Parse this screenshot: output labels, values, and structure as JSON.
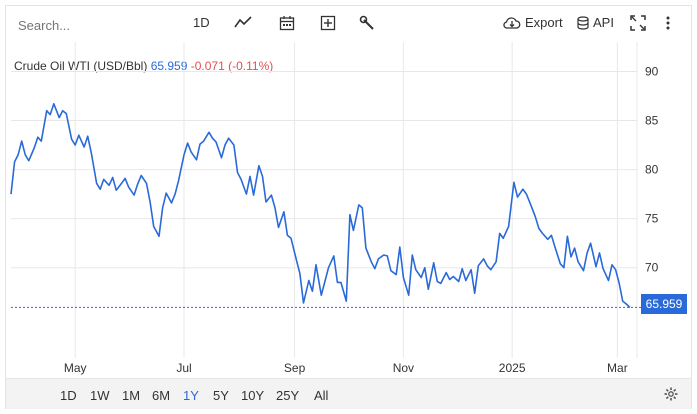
{
  "toolbar": {
    "search_placeholder": "Search...",
    "interval_label": "1D",
    "export_label": "Export",
    "api_label": "API",
    "icons": [
      "line-chart-icon",
      "calendar-icon",
      "plus-box-icon",
      "wrench-icon",
      "cloud-download-icon",
      "database-icon",
      "fullscreen-icon",
      "more-vertical-icon"
    ]
  },
  "header": {
    "name": "Crude Oil WTI (USD/Bbl)",
    "price": "65.959",
    "change": "-0.071 (-0.11%)"
  },
  "price_tag": "65.959",
  "colors": {
    "accent": "#2a6ad8",
    "negative": "#e05252",
    "grid": "#e8e8e8"
  },
  "ranges": {
    "items": [
      "1D",
      "1W",
      "1M",
      "6M",
      "1Y",
      "5Y",
      "10Y",
      "25Y",
      "All"
    ],
    "active": "1Y"
  },
  "chart_data": {
    "type": "line",
    "title": "Crude Oil WTI (USD/Bbl)",
    "xlabel": "",
    "ylabel": "",
    "ylim": [
      60.8,
      93.0
    ],
    "yticks": [
      90,
      85,
      80,
      75,
      70
    ],
    "xlim": [
      "2024-03-26",
      "2025-03-12"
    ],
    "xticks": [
      {
        "label": "May",
        "date": "2024-05-01"
      },
      {
        "label": "Jul",
        "date": "2024-07-01"
      },
      {
        "label": "Sep",
        "date": "2024-09-01"
      },
      {
        "label": "Nov",
        "date": "2024-11-01"
      },
      {
        "label": "2025",
        "date": "2025-01-01"
      },
      {
        "label": "Mar",
        "date": "2025-03-01"
      }
    ],
    "grid": true,
    "last_value": 65.959,
    "series": [
      {
        "name": "Crude Oil WTI (USD/Bbl)",
        "points": [
          [
            "2024-03-26",
            77.5
          ],
          [
            "2024-03-28",
            80.8
          ],
          [
            "2024-03-30",
            81.5
          ],
          [
            "2024-04-01",
            82.9
          ],
          [
            "2024-04-03",
            81.5
          ],
          [
            "2024-04-05",
            80.9
          ],
          [
            "2024-04-08",
            82.2
          ],
          [
            "2024-04-10",
            83.3
          ],
          [
            "2024-04-12",
            82.9
          ],
          [
            "2024-04-15",
            86.0
          ],
          [
            "2024-04-17",
            85.6
          ],
          [
            "2024-04-19",
            86.7
          ],
          [
            "2024-04-22",
            85.3
          ],
          [
            "2024-04-24",
            86.0
          ],
          [
            "2024-04-26",
            85.7
          ],
          [
            "2024-04-29",
            83.1
          ],
          [
            "2024-05-01",
            82.5
          ],
          [
            "2024-05-03",
            83.5
          ],
          [
            "2024-05-06",
            82.3
          ],
          [
            "2024-05-08",
            83.4
          ],
          [
            "2024-05-10",
            81.7
          ],
          [
            "2024-05-13",
            78.6
          ],
          [
            "2024-05-15",
            78.0
          ],
          [
            "2024-05-17",
            79.0
          ],
          [
            "2024-05-20",
            78.4
          ],
          [
            "2024-05-22",
            79.2
          ],
          [
            "2024-05-24",
            77.9
          ],
          [
            "2024-05-27",
            78.6
          ],
          [
            "2024-05-29",
            79.1
          ],
          [
            "2024-05-31",
            78.2
          ],
          [
            "2024-06-03",
            77.4
          ],
          [
            "2024-06-05",
            78.5
          ],
          [
            "2024-06-07",
            79.4
          ],
          [
            "2024-06-10",
            78.6
          ],
          [
            "2024-06-12",
            76.7
          ],
          [
            "2024-06-14",
            74.2
          ],
          [
            "2024-06-17",
            73.2
          ],
          [
            "2024-06-19",
            76.1
          ],
          [
            "2024-06-21",
            77.6
          ],
          [
            "2024-06-24",
            76.6
          ],
          [
            "2024-06-26",
            77.5
          ],
          [
            "2024-06-28",
            78.9
          ],
          [
            "2024-07-01",
            81.5
          ],
          [
            "2024-07-03",
            82.7
          ],
          [
            "2024-07-05",
            81.8
          ],
          [
            "2024-07-08",
            81.0
          ],
          [
            "2024-07-10",
            82.6
          ],
          [
            "2024-07-12",
            82.9
          ],
          [
            "2024-07-15",
            83.8
          ],
          [
            "2024-07-17",
            83.2
          ],
          [
            "2024-07-19",
            82.8
          ],
          [
            "2024-07-22",
            81.2
          ],
          [
            "2024-07-24",
            82.5
          ],
          [
            "2024-07-26",
            83.2
          ],
          [
            "2024-07-29",
            82.5
          ],
          [
            "2024-07-31",
            79.7
          ],
          [
            "2024-08-02",
            79.0
          ],
          [
            "2024-08-05",
            77.5
          ],
          [
            "2024-08-07",
            79.3
          ],
          [
            "2024-08-09",
            77.4
          ],
          [
            "2024-08-12",
            80.4
          ],
          [
            "2024-08-14",
            79.3
          ],
          [
            "2024-08-16",
            76.7
          ],
          [
            "2024-08-19",
            77.4
          ],
          [
            "2024-08-21",
            76.1
          ],
          [
            "2024-08-23",
            74.1
          ],
          [
            "2024-08-26",
            75.7
          ],
          [
            "2024-08-28",
            73.3
          ],
          [
            "2024-08-30",
            73.0
          ],
          [
            "2024-09-02",
            70.8
          ],
          [
            "2024-09-04",
            69.4
          ],
          [
            "2024-09-06",
            66.4
          ],
          [
            "2024-09-09",
            68.7
          ],
          [
            "2024-09-11",
            67.6
          ],
          [
            "2024-09-13",
            70.3
          ],
          [
            "2024-09-16",
            67.2
          ],
          [
            "2024-09-18",
            68.6
          ],
          [
            "2024-09-20",
            70.0
          ],
          [
            "2024-09-23",
            71.2
          ],
          [
            "2024-09-25",
            68.5
          ],
          [
            "2024-09-27",
            68.5
          ],
          [
            "2024-09-30",
            66.6
          ],
          [
            "2024-10-02",
            75.4
          ],
          [
            "2024-10-04",
            73.8
          ],
          [
            "2024-10-07",
            76.4
          ],
          [
            "2024-10-09",
            76.1
          ],
          [
            "2024-10-11",
            72.0
          ],
          [
            "2024-10-14",
            70.6
          ],
          [
            "2024-10-16",
            69.9
          ],
          [
            "2024-10-18",
            70.9
          ],
          [
            "2024-10-21",
            71.3
          ],
          [
            "2024-10-23",
            71.2
          ],
          [
            "2024-10-25",
            69.7
          ],
          [
            "2024-10-28",
            69.3
          ],
          [
            "2024-10-30",
            72.1
          ],
          [
            "2024-11-01",
            69.0
          ],
          [
            "2024-11-04",
            67.2
          ],
          [
            "2024-11-06",
            71.3
          ],
          [
            "2024-11-08",
            69.8
          ],
          [
            "2024-11-11",
            69.0
          ],
          [
            "2024-11-13",
            70.0
          ],
          [
            "2024-11-15",
            67.8
          ],
          [
            "2024-11-18",
            70.5
          ],
          [
            "2024-11-20",
            68.6
          ],
          [
            "2024-11-22",
            68.4
          ],
          [
            "2024-11-25",
            69.5
          ],
          [
            "2024-11-27",
            68.8
          ],
          [
            "2024-11-29",
            69.1
          ],
          [
            "2024-12-02",
            68.6
          ],
          [
            "2024-12-04",
            69.9
          ],
          [
            "2024-12-06",
            68.7
          ],
          [
            "2024-12-09",
            69.8
          ],
          [
            "2024-12-11",
            67.4
          ],
          [
            "2024-12-13",
            70.2
          ],
          [
            "2024-12-16",
            70.9
          ],
          [
            "2024-12-18",
            70.2
          ],
          [
            "2024-12-20",
            69.8
          ],
          [
            "2024-12-23",
            70.6
          ],
          [
            "2024-12-25",
            73.5
          ],
          [
            "2024-12-27",
            73.0
          ],
          [
            "2024-12-30",
            74.2
          ],
          [
            "2025-01-02",
            78.7
          ],
          [
            "2025-01-04",
            77.2
          ],
          [
            "2025-01-07",
            78.0
          ],
          [
            "2025-01-09",
            77.5
          ],
          [
            "2025-01-11",
            76.6
          ],
          [
            "2025-01-14",
            75.2
          ],
          [
            "2025-01-16",
            74.0
          ],
          [
            "2025-01-18",
            73.5
          ],
          [
            "2025-01-21",
            72.9
          ],
          [
            "2025-01-23",
            73.3
          ],
          [
            "2025-01-25",
            72.1
          ],
          [
            "2025-01-28",
            70.4
          ],
          [
            "2025-01-30",
            70.0
          ],
          [
            "2025-02-01",
            73.2
          ],
          [
            "2025-02-03",
            71.1
          ],
          [
            "2025-02-05",
            72.0
          ],
          [
            "2025-02-07",
            70.6
          ],
          [
            "2025-02-10",
            69.7
          ],
          [
            "2025-02-12",
            71.5
          ],
          [
            "2025-02-14",
            72.5
          ],
          [
            "2025-02-17",
            70.1
          ],
          [
            "2025-02-19",
            71.5
          ],
          [
            "2025-02-21",
            69.9
          ],
          [
            "2025-02-24",
            68.7
          ],
          [
            "2025-02-26",
            70.3
          ],
          [
            "2025-02-28",
            69.8
          ],
          [
            "2025-03-02",
            68.4
          ],
          [
            "2025-03-04",
            66.6
          ],
          [
            "2025-03-06",
            66.3
          ],
          [
            "2025-03-08",
            65.959
          ]
        ]
      }
    ]
  }
}
